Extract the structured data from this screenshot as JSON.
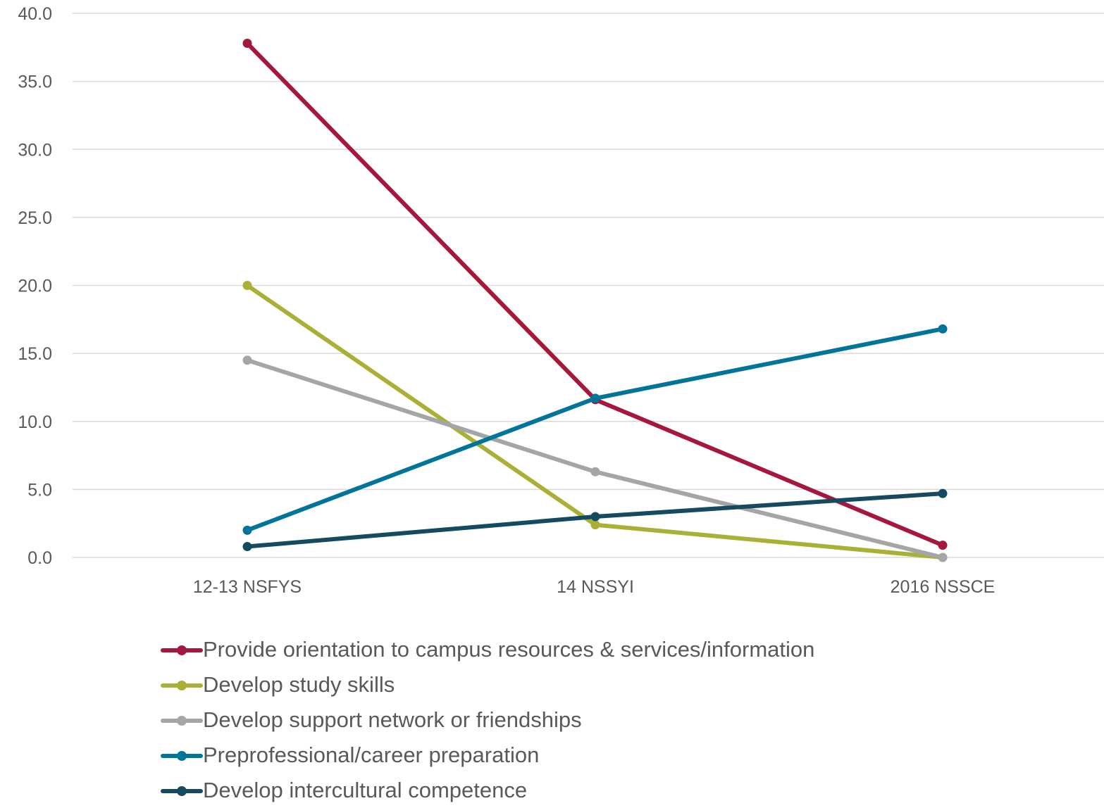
{
  "chart_data": {
    "type": "line",
    "categories": [
      "12-13 NSFYS",
      "14 NSSYI",
      "2016 NSSCE"
    ],
    "ylim": [
      0,
      40
    ],
    "yticks": [
      "0.0",
      "5.0",
      "10.0",
      "15.0",
      "20.0",
      "25.0",
      "30.0",
      "35.0",
      "40.0"
    ],
    "ytick_values": [
      0,
      5,
      10,
      15,
      20,
      25,
      30,
      35,
      40
    ],
    "grid": true,
    "legend_position": "bottom",
    "series": [
      {
        "name": "Provide orientation to campus resources & services/information",
        "color": "#A6173D",
        "values": [
          37.8,
          11.6,
          0.9
        ]
      },
      {
        "name": "Develop study skills",
        "color": "#AAB036",
        "values": [
          20.0,
          2.4,
          0.0
        ]
      },
      {
        "name": "Develop support network or friendships",
        "color": "#A5A5A5",
        "values": [
          14.5,
          6.3,
          0.0
        ]
      },
      {
        "name": "Preprofessional/career preparation",
        "color": "#00759A",
        "values": [
          2.0,
          11.7,
          16.8
        ]
      },
      {
        "name": "Develop intercultural competence",
        "color": "#154A61",
        "values": [
          0.8,
          3.0,
          4.7
        ]
      }
    ]
  }
}
